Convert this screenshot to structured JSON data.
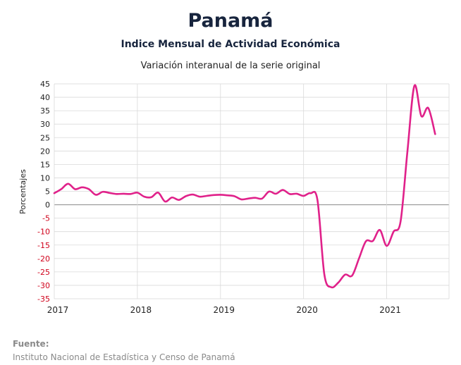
{
  "chart_data": {
    "type": "line",
    "title": "Panamá",
    "subtitle": "Indice Mensual de  Actividad Económica",
    "subtitle2": "Variación interanual de la serie original",
    "ylabel": "Porcentajes",
    "xlabel": "",
    "ylim": [
      -35,
      45
    ],
    "yticks": [
      45,
      40,
      35,
      30,
      25,
      20,
      15,
      10,
      5,
      0,
      -5,
      -10,
      -15,
      -20,
      -25,
      -30,
      -35
    ],
    "xlim": [
      2017,
      2021.75
    ],
    "xticks": [
      "2017",
      "2018",
      "2019",
      "2020",
      "2021"
    ],
    "grid": true,
    "colors": {
      "line": "#e0218a",
      "negative_tick": "#d0021b",
      "positive_tick": "#222222",
      "zero_line": "#888888"
    },
    "series": [
      {
        "values": [
          {
            "x": "2017-01",
            "y": 4.3
          },
          {
            "x": "2017-02",
            "y": 5.8
          },
          {
            "x": "2017-03",
            "y": 7.8
          },
          {
            "x": "2017-04",
            "y": 5.8
          },
          {
            "x": "2017-05",
            "y": 6.5
          },
          {
            "x": "2017-06",
            "y": 5.8
          },
          {
            "x": "2017-07",
            "y": 3.7
          },
          {
            "x": "2017-08",
            "y": 4.8
          },
          {
            "x": "2017-09",
            "y": 4.4
          },
          {
            "x": "2017-10",
            "y": 4.0
          },
          {
            "x": "2017-11",
            "y": 4.1
          },
          {
            "x": "2017-12",
            "y": 4.0
          },
          {
            "x": "2018-01",
            "y": 4.5
          },
          {
            "x": "2018-02",
            "y": 3.0
          },
          {
            "x": "2018-03",
            "y": 2.8
          },
          {
            "x": "2018-04",
            "y": 4.5
          },
          {
            "x": "2018-05",
            "y": 1.2
          },
          {
            "x": "2018-06",
            "y": 2.7
          },
          {
            "x": "2018-07",
            "y": 1.8
          },
          {
            "x": "2018-08",
            "y": 3.2
          },
          {
            "x": "2018-09",
            "y": 3.8
          },
          {
            "x": "2018-10",
            "y": 3.0
          },
          {
            "x": "2018-11",
            "y": 3.3
          },
          {
            "x": "2018-12",
            "y": 3.6
          },
          {
            "x": "2019-01",
            "y": 3.7
          },
          {
            "x": "2019-02",
            "y": 3.5
          },
          {
            "x": "2019-03",
            "y": 3.2
          },
          {
            "x": "2019-04",
            "y": 2.0
          },
          {
            "x": "2019-05",
            "y": 2.3
          },
          {
            "x": "2019-06",
            "y": 2.6
          },
          {
            "x": "2019-07",
            "y": 2.3
          },
          {
            "x": "2019-08",
            "y": 4.9
          },
          {
            "x": "2019-09",
            "y": 4.1
          },
          {
            "x": "2019-10",
            "y": 5.5
          },
          {
            "x": "2019-11",
            "y": 4.0
          },
          {
            "x": "2019-12",
            "y": 4.1
          },
          {
            "x": "2020-01",
            "y": 3.3
          },
          {
            "x": "2020-02",
            "y": 4.3
          },
          {
            "x": "2020-03",
            "y": 1.8
          },
          {
            "x": "2020-04",
            "y": -26.0
          },
          {
            "x": "2020-05",
            "y": -30.7
          },
          {
            "x": "2020-06",
            "y": -29.0
          },
          {
            "x": "2020-07",
            "y": -26.0
          },
          {
            "x": "2020-08",
            "y": -26.4
          },
          {
            "x": "2020-09",
            "y": -20.0
          },
          {
            "x": "2020-10",
            "y": -13.6
          },
          {
            "x": "2020-11",
            "y": -13.5
          },
          {
            "x": "2020-12",
            "y": -9.4
          },
          {
            "x": "2021-01",
            "y": -15.3
          },
          {
            "x": "2021-02",
            "y": -10.0
          },
          {
            "x": "2021-03",
            "y": -6.3
          },
          {
            "x": "2021-04",
            "y": 20.0
          },
          {
            "x": "2021-05",
            "y": 44.3
          },
          {
            "x": "2021-06",
            "y": 33.0
          },
          {
            "x": "2021-07",
            "y": 36.0
          },
          {
            "x": "2021-08",
            "y": 26.3
          }
        ]
      }
    ]
  },
  "footer": {
    "source_label": "Fuente:",
    "source_text": "Instituto Nacional de Estadística y Censo de Panamá"
  }
}
